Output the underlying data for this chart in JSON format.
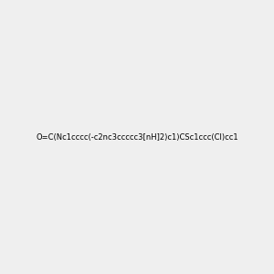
{
  "smiles": "O=C(Nc1cccc(-c2nc3ccccc3[nH]2)c1)CSc1ccc(Cl)cc1",
  "background_color": "#efefef",
  "bond_color": "#000000",
  "title": "",
  "fig_width": 3.0,
  "fig_height": 3.0,
  "dpi": 100,
  "atom_colors": {
    "N": "#0000ff",
    "O": "#ff0000",
    "S": "#cccc00",
    "Cl": "#00aa00",
    "H_on_N": "#008080",
    "C": "#000000"
  }
}
